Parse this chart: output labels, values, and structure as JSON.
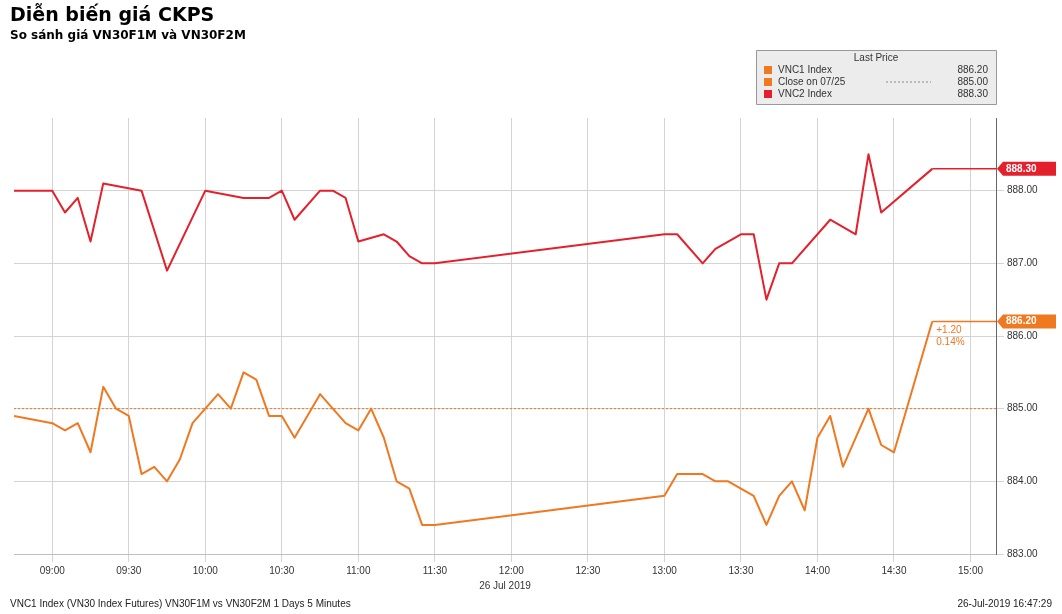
{
  "chart_data": {
    "type": "line",
    "title": "Diễn biến giá CKPS",
    "subtitle": "So sánh giá VN30F1M và VN30F2M",
    "xlabel": "26 Jul 2019",
    "legend_title": "Last Price",
    "legend": "top right",
    "grid": true,
    "xlim": [
      "2019-07-26T08:45",
      "2019-07-26T15:10"
    ],
    "xticks": [
      {
        "value": "2019-07-26T09:00",
        "label": "09:00"
      },
      {
        "value": "2019-07-26T09:30",
        "label": "09:30"
      },
      {
        "value": "2019-07-26T10:00",
        "label": "10:00"
      },
      {
        "value": "2019-07-26T10:30",
        "label": "10:30"
      },
      {
        "value": "2019-07-26T11:00",
        "label": "11:00"
      },
      {
        "value": "2019-07-26T11:30",
        "label": "11:30"
      },
      {
        "value": "2019-07-26T12:00",
        "label": "12:00"
      },
      {
        "value": "2019-07-26T12:30",
        "label": "12:30"
      },
      {
        "value": "2019-07-26T13:00",
        "label": "13:00"
      },
      {
        "value": "2019-07-26T13:30",
        "label": "13:30"
      },
      {
        "value": "2019-07-26T14:00",
        "label": "14:00"
      },
      {
        "value": "2019-07-26T14:30",
        "label": "14:30"
      },
      {
        "value": "2019-07-26T15:00",
        "label": "15:00"
      }
    ],
    "ylim": [
      883,
      889
    ],
    "yticks": [
      {
        "value": 883,
        "label": "883.00"
      },
      {
        "value": 884,
        "label": "884.00"
      },
      {
        "value": 885,
        "label": "885.00"
      },
      {
        "value": 886,
        "label": "886.00"
      },
      {
        "value": 887,
        "label": "887.00"
      },
      {
        "value": 888,
        "label": "888.00"
      }
    ],
    "series": [
      {
        "name": "VNC1 Index",
        "color": "#f07820",
        "x": [
          "2019-07-26T08:45",
          "2019-07-26T09:00",
          "2019-07-26T09:05",
          "2019-07-26T09:10",
          "2019-07-26T09:15",
          "2019-07-26T09:20",
          "2019-07-26T09:25",
          "2019-07-26T09:30",
          "2019-07-26T09:35",
          "2019-07-26T09:40",
          "2019-07-26T09:45",
          "2019-07-26T09:50",
          "2019-07-26T09:55",
          "2019-07-26T10:00",
          "2019-07-26T10:05",
          "2019-07-26T10:10",
          "2019-07-26T10:15",
          "2019-07-26T10:20",
          "2019-07-26T10:25",
          "2019-07-26T10:30",
          "2019-07-26T10:35",
          "2019-07-26T10:45",
          "2019-07-26T10:55",
          "2019-07-26T11:00",
          "2019-07-26T11:05",
          "2019-07-26T11:10",
          "2019-07-26T11:15",
          "2019-07-26T11:20",
          "2019-07-26T11:25",
          "2019-07-26T11:30",
          "2019-07-26T13:00",
          "2019-07-26T13:05",
          "2019-07-26T13:15",
          "2019-07-26T13:20",
          "2019-07-26T13:25",
          "2019-07-26T13:30",
          "2019-07-26T13:35",
          "2019-07-26T13:40",
          "2019-07-26T13:45",
          "2019-07-26T13:50",
          "2019-07-26T13:55",
          "2019-07-26T14:00",
          "2019-07-26T14:05",
          "2019-07-26T14:10",
          "2019-07-26T14:20",
          "2019-07-26T14:25",
          "2019-07-26T14:30",
          "2019-07-26T14:45"
        ],
        "values": [
          884.9,
          884.8,
          884.7,
          884.8,
          884.4,
          885.3,
          885.0,
          884.9,
          884.1,
          884.2,
          884.0,
          884.3,
          884.8,
          885.0,
          885.2,
          885.0,
          885.5,
          885.4,
          884.9,
          884.9,
          884.6,
          885.2,
          884.8,
          884.7,
          885.0,
          884.6,
          884.0,
          883.9,
          883.4,
          883.4,
          883.8,
          884.1,
          884.1,
          884.0,
          884.0,
          883.9,
          883.8,
          883.4,
          883.8,
          884.0,
          883.6,
          884.6,
          884.9,
          884.2,
          885.0,
          884.5,
          884.4,
          886.2
        ],
        "value_labels": [
          null,
          null,
          null,
          null,
          null,
          null,
          null,
          null,
          null,
          null,
          null,
          null,
          null,
          null,
          null,
          null,
          null,
          null,
          null,
          null,
          null,
          null,
          null,
          null,
          null,
          null,
          null,
          null,
          null,
          null,
          null,
          null,
          null,
          null,
          null,
          null,
          null,
          null,
          null,
          null,
          null,
          null,
          null,
          null,
          null,
          null,
          null,
          "886.20"
        ]
      },
      {
        "name": "VNC2 Index",
        "color": "#e3202c",
        "x": [
          "2019-07-26T08:45",
          "2019-07-26T09:00",
          "2019-07-26T09:05",
          "2019-07-26T09:10",
          "2019-07-26T09:15",
          "2019-07-26T09:20",
          "2019-07-26T09:35",
          "2019-07-26T09:45",
          "2019-07-26T10:00",
          "2019-07-26T10:15",
          "2019-07-26T10:25",
          "2019-07-26T10:30",
          "2019-07-26T10:35",
          "2019-07-26T10:45",
          "2019-07-26T10:50",
          "2019-07-26T10:55",
          "2019-07-26T11:00",
          "2019-07-26T11:10",
          "2019-07-26T11:15",
          "2019-07-26T11:20",
          "2019-07-26T11:25",
          "2019-07-26T11:30",
          "2019-07-26T13:00",
          "2019-07-26T13:05",
          "2019-07-26T13:15",
          "2019-07-26T13:20",
          "2019-07-26T13:30",
          "2019-07-26T13:35",
          "2019-07-26T13:40",
          "2019-07-26T13:45",
          "2019-07-26T13:50",
          "2019-07-26T14:05",
          "2019-07-26T14:15",
          "2019-07-26T14:20",
          "2019-07-26T14:25",
          "2019-07-26T14:45"
        ],
        "values": [
          888.0,
          888.0,
          887.7,
          887.9,
          887.3,
          888.1,
          888.0,
          886.9,
          888.0,
          887.9,
          887.9,
          888.0,
          887.6,
          888.0,
          888.0,
          887.9,
          887.3,
          887.4,
          887.3,
          887.1,
          887.0,
          887.0,
          887.4,
          887.4,
          887.0,
          887.2,
          887.4,
          887.4,
          886.5,
          887.0,
          887.0,
          887.6,
          887.4,
          888.5,
          887.7,
          888.3
        ],
        "value_labels": [
          null,
          null,
          null,
          null,
          null,
          null,
          null,
          null,
          null,
          null,
          null,
          null,
          null,
          null,
          null,
          null,
          null,
          null,
          null,
          null,
          null,
          null,
          null,
          null,
          null,
          null,
          null,
          null,
          null,
          null,
          null,
          null,
          null,
          null,
          null,
          "888.30"
        ]
      }
    ],
    "ref_lines": [
      {
        "axis": "y",
        "value": 885,
        "label": "Close on 07/25",
        "color": "#f07820",
        "line_style": "dotted"
      }
    ],
    "annotations": [
      "885.00",
      {
        "text": "+1.20",
        "x": "2019-07-26T14:45",
        "y": 886.2
      },
      {
        "text": "0.14%",
        "x": "2019-07-26T14:45",
        "y": 886.2
      },
      "VNC1 Index (VN30 Index Futures) VN30F1M vs VN30F2M 1 Days 5 Minutes",
      "26-Jul-2019 16:47:29"
    ]
  }
}
